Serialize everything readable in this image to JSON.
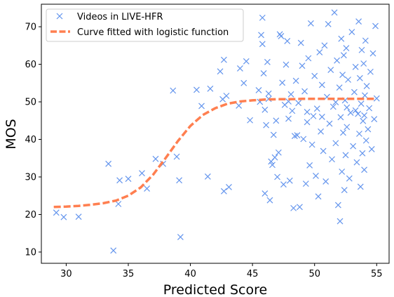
{
  "chart_data": {
    "type": "scatter",
    "xlabel": "Predicted Score",
    "ylabel": "MOS",
    "xlim": [
      28,
      56
    ],
    "ylim": [
      7,
      76
    ],
    "xticks": [
      30,
      35,
      40,
      45,
      50,
      55
    ],
    "yticks": [
      10,
      20,
      30,
      40,
      50,
      60,
      70
    ],
    "legend_position": "top-left",
    "grid": false,
    "series": [
      {
        "name": "Videos in LIVE-HFR",
        "kind": "scatter",
        "marker": "x",
        "color": "#6495ED",
        "points": [
          [
            29.2,
            20.5
          ],
          [
            29.8,
            19.3
          ],
          [
            31.0,
            19.4
          ],
          [
            33.4,
            33.5
          ],
          [
            33.8,
            10.4
          ],
          [
            34.2,
            22.8
          ],
          [
            34.3,
            29.1
          ],
          [
            35.0,
            29.5
          ],
          [
            36.1,
            31.0
          ],
          [
            36.5,
            26.9
          ],
          [
            37.2,
            34.8
          ],
          [
            37.8,
            33.5
          ],
          [
            38.6,
            53.0
          ],
          [
            38.9,
            35.4
          ],
          [
            39.1,
            29.1
          ],
          [
            39.2,
            14.0
          ],
          [
            40.5,
            53.2
          ],
          [
            40.9,
            48.9
          ],
          [
            41.4,
            30.1
          ],
          [
            41.6,
            53.5
          ],
          [
            42.4,
            58.1
          ],
          [
            42.6,
            50.7
          ],
          [
            42.7,
            61.2
          ],
          [
            42.7,
            26.2
          ],
          [
            42.9,
            51.6
          ],
          [
            43.1,
            27.3
          ],
          [
            43.9,
            49.0
          ],
          [
            44.0,
            58.9
          ],
          [
            44.3,
            55.0
          ],
          [
            44.5,
            60.8
          ],
          [
            44.8,
            45.1
          ],
          [
            45.5,
            53.1
          ],
          [
            45.6,
            50.0
          ],
          [
            45.7,
            67.8
          ],
          [
            45.8,
            72.4
          ],
          [
            45.8,
            65.4
          ],
          [
            45.9,
            57.6
          ],
          [
            46.0,
            47.9
          ],
          [
            46.0,
            25.6
          ],
          [
            46.1,
            43.8
          ],
          [
            46.2,
            60.6
          ],
          [
            46.3,
            52.2
          ],
          [
            46.4,
            23.8
          ],
          [
            46.5,
            34.1
          ],
          [
            46.6,
            33.2
          ],
          [
            46.7,
            41.2
          ],
          [
            46.8,
            35.2
          ],
          [
            46.9,
            45.0
          ],
          [
            47.0,
            30.0
          ],
          [
            47.1,
            36.5
          ],
          [
            47.2,
            68.0
          ],
          [
            47.3,
            67.5
          ],
          [
            47.4,
            55.1
          ],
          [
            47.5,
            28.0
          ],
          [
            47.6,
            49.2
          ],
          [
            47.7,
            59.9
          ],
          [
            47.8,
            66.2
          ],
          [
            47.9,
            45.5
          ],
          [
            48.0,
            29.0
          ],
          [
            48.1,
            52.0
          ],
          [
            48.2,
            47.6
          ],
          [
            48.3,
            21.7
          ],
          [
            48.4,
            40.9
          ],
          [
            48.5,
            55.6
          ],
          [
            48.6,
            41.1
          ],
          [
            48.7,
            49.7
          ],
          [
            48.8,
            22.0
          ],
          [
            48.9,
            65.7
          ],
          [
            49.0,
            59.6
          ],
          [
            49.1,
            40.1
          ],
          [
            49.2,
            52.8
          ],
          [
            49.3,
            28.2
          ],
          [
            49.4,
            44.6
          ],
          [
            49.5,
            61.6
          ],
          [
            49.6,
            33.1
          ],
          [
            49.7,
            70.9
          ],
          [
            49.8,
            38.6
          ],
          [
            49.9,
            46.2
          ],
          [
            50.0,
            56.9
          ],
          [
            50.1,
            30.3
          ],
          [
            50.2,
            48.2
          ],
          [
            50.3,
            24.8
          ],
          [
            50.4,
            63.2
          ],
          [
            50.5,
            42.1
          ],
          [
            50.6,
            54.5
          ],
          [
            50.7,
            36.9
          ],
          [
            50.8,
            65.0
          ],
          [
            50.9,
            28.8
          ],
          [
            51.0,
            51.3
          ],
          [
            51.1,
            70.7
          ],
          [
            51.2,
            44.2
          ],
          [
            51.3,
            58.5
          ],
          [
            51.4,
            34.7
          ],
          [
            51.5,
            48.7
          ],
          [
            51.6,
            73.8
          ],
          [
            51.7,
            39.0
          ],
          [
            51.8,
            61.0
          ],
          [
            51.9,
            22.5
          ],
          [
            52.0,
            53.8
          ],
          [
            52.05,
            18.2
          ],
          [
            52.1,
            45.9
          ],
          [
            52.15,
            66.8
          ],
          [
            52.2,
            31.4
          ],
          [
            52.25,
            57.2
          ],
          [
            52.3,
            41.8
          ],
          [
            52.35,
            62.4
          ],
          [
            52.4,
            26.5
          ],
          [
            52.45,
            50.4
          ],
          [
            52.5,
            35.8
          ],
          [
            52.55,
            64.3
          ],
          [
            52.6,
            43.3
          ],
          [
            52.7,
            55.9
          ],
          [
            52.8,
            29.6
          ],
          [
            52.9,
            47.1
          ],
          [
            53.0,
            68.6
          ],
          [
            53.1,
            38.2
          ],
          [
            53.2,
            52.6
          ],
          [
            53.3,
            59.3
          ],
          [
            53.4,
            33.9
          ],
          [
            53.5,
            46.8
          ],
          [
            53.55,
            71.4
          ],
          [
            53.6,
            41.5
          ],
          [
            53.65,
            56.3
          ],
          [
            53.7,
            27.4
          ],
          [
            53.75,
            49.5
          ],
          [
            53.8,
            63.8
          ],
          [
            53.85,
            36.3
          ],
          [
            53.9,
            44.9
          ],
          [
            53.95,
            60.2
          ],
          [
            54.0,
            31.9
          ],
          [
            54.05,
            51.7
          ],
          [
            54.1,
            66.3
          ],
          [
            54.15,
            39.7
          ],
          [
            54.2,
            54.2
          ],
          [
            54.3,
            42.7
          ],
          [
            54.4,
            48.3
          ],
          [
            54.5,
            58.0
          ],
          [
            54.6,
            37.4
          ],
          [
            54.7,
            62.9
          ],
          [
            54.8,
            45.4
          ],
          [
            54.9,
            70.2
          ],
          [
            55.0,
            50.9
          ],
          [
            46.3,
            50.8
          ],
          [
            47.9,
            50.1
          ],
          [
            49.4,
            47.3
          ],
          [
            50.6,
            46.0
          ],
          [
            51.7,
            49.9
          ],
          [
            52.6,
            48.5
          ],
          [
            53.3,
            47.7
          ],
          [
            54.0,
            46.4
          ]
        ]
      },
      {
        "name": "Curve fitted with logistic function",
        "kind": "line",
        "linestyle": "dashed",
        "color": "#FF7F50",
        "x": [
          29,
          30,
          31,
          32,
          33,
          34,
          35,
          36,
          37,
          38,
          39,
          40,
          41,
          42,
          43,
          44,
          45,
          46,
          47,
          48,
          49,
          50,
          51,
          52,
          53,
          54,
          55
        ],
        "y": [
          22.0,
          22.1,
          22.3,
          22.6,
          23.0,
          23.7,
          25.0,
          27.2,
          30.6,
          35.0,
          39.6,
          43.6,
          46.5,
          48.3,
          49.5,
          50.1,
          50.4,
          50.6,
          50.7,
          50.7,
          50.8,
          50.8,
          50.8,
          50.8,
          50.8,
          50.8,
          50.8
        ]
      }
    ]
  }
}
